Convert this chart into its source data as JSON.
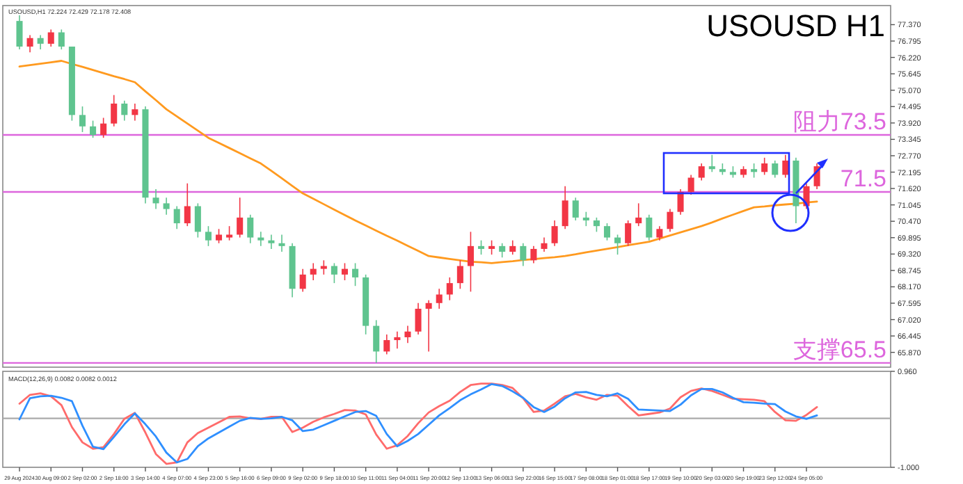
{
  "chart_data": [
    {
      "type": "candlestick",
      "title": "USOUSD H1",
      "subtitle": "USOUSD,H1 72.224 72.429 72.178 72.408",
      "tick_labels": "y",
      "grid": false,
      "categories": [
        null,
        null,
        null,
        null,
        null,
        null,
        null,
        null,
        null,
        null,
        null,
        null,
        null,
        null,
        null,
        null,
        null,
        null,
        null,
        null,
        null,
        null,
        null,
        null,
        null,
        null,
        null,
        null,
        null,
        null,
        null,
        null,
        null,
        null,
        null,
        null,
        null,
        null,
        null,
        null,
        null,
        null,
        null,
        null,
        null,
        null,
        null,
        null,
        null,
        null,
        null,
        null,
        null,
        null,
        null,
        null,
        null,
        null,
        null,
        null,
        null,
        null,
        null,
        null,
        null,
        null,
        null,
        null,
        null,
        null,
        null,
        null,
        null,
        null,
        null,
        null,
        null
      ],
      "colors": [
        "#5fc48f",
        "#f23645",
        "#5fc48f",
        "#f23645",
        "#5fc48f",
        "#5fc48f",
        "#5fc48f",
        "#5fc48f",
        "#f23645",
        "#f23645",
        "#5fc48f",
        "#f23645",
        "#5fc48f",
        "#5fc48f",
        "#5fc48f",
        "#5fc48f",
        "#f23645",
        "#5fc48f",
        "#5fc48f",
        "#f23645",
        "#f23645",
        "#f23645",
        "#5fc48f",
        "#5fc48f",
        "#5fc48f",
        "#5fc48f",
        "#5fc48f",
        "#f23645",
        "#f23645",
        "#f23645",
        "#5fc48f",
        "#f23645",
        "#5fc48f",
        "#5fc48f",
        "#5fc48f",
        "#f23645",
        "#f23645",
        "#f23645",
        "#f23645",
        "#f23645",
        "#f23645",
        "#f23645",
        "#f23645",
        "#f23645",
        "#5fc48f",
        "#f23645",
        "#5fc48f",
        "#f23645",
        "#5fc48f",
        "#f23645",
        "#f23645",
        "#f23645",
        "#f23645",
        "#5fc48f",
        "#5fc48f",
        "#5fc48f",
        "#5fc48f",
        "#5fc48f",
        "#f23645",
        "#f23645",
        "#5fc48f",
        "#f23645",
        "#f23645",
        "#f23645",
        "#f23645",
        "#f23645",
        "#5fc48f",
        "#5fc48f",
        "#5fc48f",
        "#f23645",
        "#5fc48f",
        "#f23645",
        "#5fc48f",
        "#f23645",
        "#5fc48f",
        "#f23645",
        "#f23645"
      ],
      "ohlc": [
        [
          77.5,
          77.7,
          76.5,
          76.6
        ],
        [
          76.6,
          77.0,
          76.4,
          76.9
        ],
        [
          76.9,
          77.0,
          76.5,
          76.7
        ],
        [
          76.7,
          77.2,
          76.6,
          77.1
        ],
        [
          77.1,
          77.2,
          76.5,
          76.6
        ],
        [
          76.6,
          76.6,
          74.0,
          74.2
        ],
        [
          74.2,
          74.5,
          73.6,
          73.8
        ],
        [
          73.8,
          74.0,
          73.4,
          73.5
        ],
        [
          73.5,
          74.1,
          73.4,
          73.9
        ],
        [
          73.9,
          74.9,
          73.8,
          74.6
        ],
        [
          74.6,
          74.7,
          74.0,
          74.2
        ],
        [
          74.2,
          74.6,
          74.0,
          74.4
        ],
        [
          74.4,
          74.5,
          71.1,
          71.3
        ],
        [
          71.3,
          71.6,
          70.9,
          71.1
        ],
        [
          71.1,
          71.3,
          70.7,
          70.9
        ],
        [
          70.9,
          71.0,
          70.2,
          70.4
        ],
        [
          70.4,
          71.8,
          70.3,
          71.0
        ],
        [
          71.0,
          71.1,
          69.9,
          70.1
        ],
        [
          70.1,
          70.3,
          69.6,
          69.8
        ],
        [
          69.8,
          70.2,
          69.7,
          70.0
        ],
        [
          69.9,
          70.3,
          69.8,
          70.0
        ],
        [
          70.0,
          71.3,
          69.9,
          70.6
        ],
        [
          70.6,
          70.7,
          69.7,
          69.9
        ],
        [
          69.9,
          70.1,
          69.6,
          69.8
        ],
        [
          69.8,
          70.0,
          69.5,
          69.7
        ],
        [
          69.7,
          70.0,
          69.4,
          69.6
        ],
        [
          69.6,
          69.7,
          67.8,
          68.1
        ],
        [
          68.1,
          68.8,
          68.0,
          68.6
        ],
        [
          68.6,
          69.0,
          68.4,
          68.8
        ],
        [
          68.8,
          69.1,
          68.6,
          68.9
        ],
        [
          68.9,
          69.0,
          68.3,
          68.6
        ],
        [
          68.6,
          69.0,
          68.4,
          68.8
        ],
        [
          68.8,
          69.0,
          68.2,
          68.5
        ],
        [
          68.5,
          68.6,
          66.5,
          66.8
        ],
        [
          66.8,
          67.0,
          65.5,
          65.9
        ],
        [
          65.9,
          66.5,
          65.8,
          66.3
        ],
        [
          66.3,
          66.6,
          66.0,
          66.4
        ],
        [
          66.4,
          66.8,
          66.2,
          66.6
        ],
        [
          66.6,
          67.6,
          66.5,
          67.4
        ],
        [
          67.4,
          67.7,
          65.9,
          67.6
        ],
        [
          67.6,
          68.1,
          67.4,
          67.9
        ],
        [
          67.9,
          68.5,
          67.7,
          68.3
        ],
        [
          68.3,
          69.1,
          68.1,
          68.9
        ],
        [
          68.9,
          70.1,
          68.0,
          69.6
        ],
        [
          69.6,
          69.8,
          69.3,
          69.5
        ],
        [
          69.5,
          69.8,
          69.3,
          69.6
        ],
        [
          69.6,
          69.7,
          69.2,
          69.4
        ],
        [
          69.4,
          69.8,
          69.3,
          69.6
        ],
        [
          69.6,
          69.7,
          68.9,
          69.1
        ],
        [
          69.1,
          69.6,
          69.0,
          69.5
        ],
        [
          69.5,
          69.9,
          69.4,
          69.7
        ],
        [
          69.7,
          70.5,
          69.6,
          70.3
        ],
        [
          70.3,
          71.7,
          70.2,
          71.2
        ],
        [
          71.2,
          71.3,
          70.5,
          70.6
        ],
        [
          70.6,
          70.8,
          70.3,
          70.5
        ],
        [
          70.5,
          70.6,
          70.1,
          70.3
        ],
        [
          70.3,
          70.4,
          69.8,
          69.9
        ],
        [
          69.9,
          70.0,
          69.3,
          69.7
        ],
        [
          69.7,
          70.5,
          69.6,
          70.4
        ],
        [
          70.4,
          71.1,
          70.3,
          70.6
        ],
        [
          70.6,
          70.7,
          69.8,
          69.9
        ],
        [
          69.9,
          70.3,
          69.8,
          70.2
        ],
        [
          70.2,
          70.9,
          70.1,
          70.8
        ],
        [
          70.8,
          71.6,
          70.7,
          71.5
        ],
        [
          71.5,
          72.1,
          71.4,
          72.0
        ],
        [
          72.0,
          72.5,
          71.9,
          72.4
        ],
        [
          72.4,
          72.8,
          72.2,
          72.3
        ],
        [
          72.3,
          72.5,
          72.1,
          72.2
        ],
        [
          72.2,
          72.4,
          72.0,
          72.1
        ],
        [
          72.1,
          72.4,
          72.0,
          72.3
        ],
        [
          72.3,
          72.5,
          72.0,
          72.2
        ],
        [
          72.2,
          72.7,
          72.1,
          72.5
        ],
        [
          72.5,
          72.6,
          72.0,
          72.1
        ],
        [
          72.1,
          72.8,
          72.0,
          72.6
        ],
        [
          72.6,
          72.7,
          70.4,
          71.0
        ],
        [
          71.0,
          71.8,
          70.9,
          71.7
        ],
        [
          71.7,
          72.5,
          71.6,
          72.4
        ]
      ],
      "series": [
        {
          "type": "line",
          "color": "#ff9a1f",
          "values": [
            75.9,
            75.95,
            76.0,
            76.05,
            76.1,
            75.99,
            75.89,
            75.78,
            75.67,
            75.56,
            75.46,
            75.35,
            75.03,
            74.72,
            74.4,
            74.15,
            73.9,
            73.65,
            73.4,
            73.22,
            73.04,
            72.86,
            72.68,
            72.5,
            72.24,
            71.98,
            71.71,
            71.45,
            71.26,
            71.07,
            70.88,
            70.69,
            70.5,
            70.32,
            70.14,
            69.96,
            69.79,
            69.61,
            69.43,
            69.25,
            69.2,
            69.15,
            69.1,
            69.05,
            69.03,
            69.0,
            69.04,
            69.07,
            69.11,
            69.14,
            69.18,
            69.21,
            69.25,
            69.31,
            69.38,
            69.44,
            69.5,
            69.56,
            69.63,
            69.69,
            69.75,
            69.86,
            69.97,
            70.08,
            70.19,
            70.3,
            70.43,
            70.57,
            70.7,
            70.83,
            70.96,
            70.99,
            71.03,
            71.06,
            71.09,
            71.13,
            71.16
          ]
        }
      ],
      "ref_lines": [
        {
          "axis": "y",
          "value": 73.5,
          "label": "阻力73.5",
          "color": "#dd66dd"
        },
        {
          "axis": "y",
          "value": 71.5,
          "label": "71.5",
          "color": "#dd66dd"
        },
        {
          "axis": "y",
          "value": 65.5,
          "label": "支撑65.5",
          "color": "#dd66dd"
        }
      ],
      "ylim": [
        65.35,
        78.04
      ],
      "yticks": [
        {
          "value": 65.87,
          "label": "65.870"
        },
        {
          "value": 66.445,
          "label": "66.445"
        },
        {
          "value": 67.02,
          "label": "67.020"
        },
        {
          "value": 67.595,
          "label": "67.595"
        },
        {
          "value": 68.17,
          "label": "68.170"
        },
        {
          "value": 68.745,
          "label": "68.745"
        },
        {
          "value": 69.32,
          "label": "69.320"
        },
        {
          "value": 69.895,
          "label": "69.895"
        },
        {
          "value": 70.47,
          "label": "70.470"
        },
        {
          "value": 71.045,
          "label": "71.045"
        },
        {
          "value": 71.62,
          "label": "71.620"
        },
        {
          "value": 72.195,
          "label": "72.195"
        },
        {
          "value": 72.77,
          "label": "72.770"
        },
        {
          "value": 73.345,
          "label": "73.345"
        },
        {
          "value": 73.92,
          "label": "73.920"
        },
        {
          "value": 74.495,
          "label": "74.495"
        },
        {
          "value": 75.07,
          "label": "75.070"
        },
        {
          "value": 75.645,
          "label": "75.645"
        },
        {
          "value": 76.22,
          "label": "76.220"
        },
        {
          "value": 76.795,
          "label": "76.795"
        },
        {
          "value": 77.37,
          "label": "77.370"
        }
      ]
    },
    {
      "type": "line",
      "title": "MACD(12,26,9) 0.0082 0.0082 0.0012",
      "grid": false,
      "categories": [
        "29 Aug 2024",
        null,
        null,
        "30 Aug 09:00",
        null,
        null,
        "2 Sep 02:00",
        null,
        null,
        "2 Sep 18:00",
        null,
        null,
        "3 Sep 14:00",
        null,
        null,
        "4 Sep 07:00",
        null,
        null,
        "4 Sep 23:00",
        null,
        null,
        "5 Sep 16:00",
        null,
        null,
        "6 Sep 09:00",
        null,
        null,
        "9 Sep 02:00",
        null,
        null,
        "9 Sep 18:00",
        null,
        null,
        "10 Sep 11:00",
        null,
        null,
        "11 Sep 04:00",
        null,
        null,
        "11 Sep 20:00",
        null,
        null,
        "12 Sep 13:00",
        null,
        null,
        "13 Sep 06:00",
        null,
        null,
        "13 Sep 22:00",
        null,
        null,
        "16 Sep 15:00",
        null,
        null,
        "17 Sep 08:00",
        null,
        null,
        "18 Sep 01:00",
        null,
        null,
        "18 Sep 17:00",
        null,
        null,
        "19 Sep 10:00",
        null,
        null,
        "20 Sep 03:00",
        null,
        null,
        "20 Sep 19:00",
        null,
        null,
        "23 Sep 12:00",
        null,
        null,
        "24 Sep 05:00",
        null
      ],
      "series": [
        {
          "type": "line",
          "color": "#ff6b6b",
          "values": [
            0.3,
            0.48,
            0.51,
            0.45,
            0.27,
            -0.18,
            -0.49,
            -0.62,
            -0.59,
            -0.32,
            -0.01,
            0.11,
            -0.29,
            -0.73,
            -0.93,
            -0.9,
            -0.49,
            -0.3,
            -0.19,
            -0.08,
            0.03,
            0.04,
            0.0,
            -0.01,
            0.03,
            0.03,
            -0.28,
            -0.19,
            -0.07,
            0.02,
            0.09,
            0.17,
            0.16,
            0.08,
            -0.33,
            -0.62,
            -0.55,
            -0.36,
            -0.1,
            0.12,
            0.25,
            0.36,
            0.54,
            0.68,
            0.71,
            0.71,
            0.68,
            0.62,
            0.41,
            0.13,
            0.16,
            0.3,
            0.45,
            0.5,
            0.43,
            0.38,
            0.48,
            0.46,
            0.25,
            0.06,
            0.09,
            0.12,
            0.2,
            0.43,
            0.56,
            0.61,
            0.56,
            0.48,
            0.4,
            0.39,
            0.38,
            0.35,
            0.13,
            -0.04,
            -0.05,
            0.07,
            0.23
          ]
        },
        {
          "type": "line",
          "color": "#2f8fff",
          "values": [
            -0.02,
            0.41,
            0.45,
            0.46,
            0.42,
            0.35,
            -0.15,
            -0.58,
            -0.63,
            -0.38,
            -0.12,
            0.1,
            -0.12,
            -0.37,
            -0.7,
            -0.9,
            -0.83,
            -0.57,
            -0.41,
            -0.29,
            -0.17,
            -0.05,
            0.01,
            -0.01,
            0.0,
            0.03,
            -0.04,
            -0.26,
            -0.23,
            -0.14,
            -0.05,
            0.04,
            0.13,
            0.15,
            0.05,
            -0.32,
            -0.57,
            -0.46,
            -0.32,
            -0.13,
            0.06,
            0.21,
            0.37,
            0.49,
            0.59,
            0.7,
            0.66,
            0.55,
            0.42,
            0.23,
            0.13,
            0.24,
            0.41,
            0.53,
            0.54,
            0.48,
            0.45,
            0.51,
            0.4,
            0.18,
            0.17,
            0.16,
            0.15,
            0.28,
            0.47,
            0.6,
            0.6,
            0.53,
            0.42,
            0.33,
            0.32,
            0.3,
            0.29,
            0.14,
            0.04,
            -0.01,
            0.06
          ]
        }
      ],
      "ref_lines": [
        {
          "axis": "y",
          "value": 0,
          "color": "#aaaaaa"
        }
      ],
      "ylim": [
        -1.0,
        0.96
      ],
      "yticks": [
        {
          "value": 0.96,
          "label": "0.960"
        },
        {
          "value": -1.0,
          "label": "-1.000"
        }
      ]
    }
  ]
}
